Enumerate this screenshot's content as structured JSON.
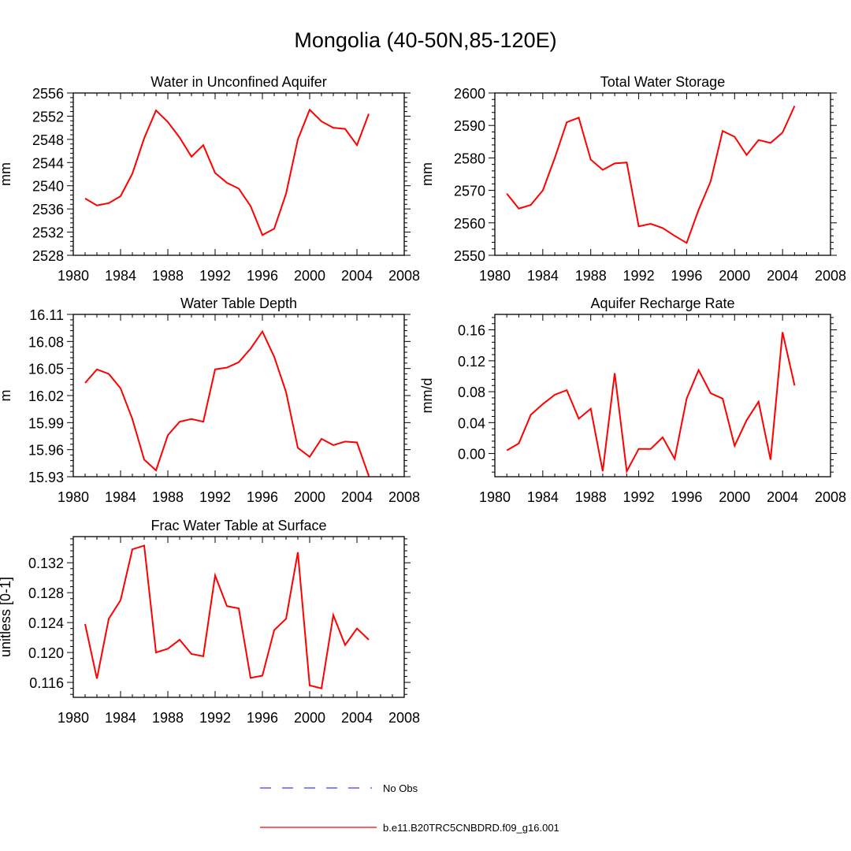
{
  "title": "Mongolia (40-50N,85-120E)",
  "colors": {
    "series": "#ff0000",
    "obs": "#3a3aff",
    "axis": "#000000"
  },
  "legend": {
    "placement": "bottom-center",
    "entries": [
      {
        "label": "No Obs",
        "style": "dashed",
        "color": "#3a3aff"
      },
      {
        "label": "b.e11.B20TRC5CNBDRD.f09_g16.001",
        "style": "solid",
        "color": "#ff0000"
      }
    ]
  },
  "chart_data": [
    {
      "type": "line",
      "title": "Water in Unconfined Aquifer",
      "ylabel": "mm",
      "xlim": [
        1980,
        2008
      ],
      "xticks": [
        1980,
        1984,
        1988,
        1992,
        1996,
        2000,
        2004,
        2008
      ],
      "ylim": [
        2528,
        2556
      ],
      "yticks": [
        2528,
        2532,
        2536,
        2540,
        2544,
        2548,
        2552,
        2556
      ],
      "x": [
        1981,
        1982,
        1983,
        1984,
        1985,
        1986,
        1987,
        1988,
        1989,
        1990,
        1991,
        1992,
        1993,
        1994,
        1995,
        1996,
        1997,
        1998,
        1999,
        2000,
        2001,
        2002,
        2003,
        2004,
        2005
      ],
      "values": [
        2537.8,
        2536.6,
        2537.0,
        2538.2,
        2542.1,
        2548.2,
        2553.0,
        2551.0,
        2548.3,
        2545.0,
        2547.0,
        2542.2,
        2540.5,
        2539.5,
        2536.5,
        2531.5,
        2532.6,
        2538.6,
        2548.0,
        2553.1,
        2551.1,
        2550.0,
        2549.8,
        2547.0,
        2552.4
      ]
    },
    {
      "type": "line",
      "title": "Total Water Storage",
      "ylabel": "mm",
      "xlim": [
        1980,
        2008
      ],
      "xticks": [
        1980,
        1984,
        1988,
        1992,
        1996,
        2000,
        2004,
        2008
      ],
      "ylim": [
        2550,
        2600
      ],
      "yticks": [
        2550,
        2560,
        2570,
        2580,
        2590,
        2600
      ],
      "x": [
        1981,
        1982,
        1983,
        1984,
        1985,
        1986,
        1987,
        1988,
        1989,
        1990,
        1991,
        1992,
        1993,
        1994,
        1995,
        1996,
        1997,
        1998,
        1999,
        2000,
        2001,
        2002,
        2003,
        2004,
        2005
      ],
      "values": [
        2569.0,
        2564.4,
        2565.5,
        2570.0,
        2580.0,
        2591.0,
        2592.4,
        2579.5,
        2576.3,
        2578.3,
        2578.6,
        2558.9,
        2559.7,
        2558.4,
        2556.0,
        2553.8,
        2564.0,
        2572.8,
        2588.3,
        2586.5,
        2580.9,
        2585.5,
        2584.6,
        2587.8,
        2596.0
      ]
    },
    {
      "type": "line",
      "title": "Water Table Depth",
      "ylabel": "m",
      "xlim": [
        1980,
        2008
      ],
      "xticks": [
        1980,
        1984,
        1988,
        1992,
        1996,
        2000,
        2004,
        2008
      ],
      "ylim": [
        15.93,
        16.11
      ],
      "yticks": [
        "15.93",
        "15.96",
        "15.99",
        "16.02",
        "16.05",
        "16.08",
        "16.11"
      ],
      "x": [
        1981,
        1982,
        1983,
        1984,
        1985,
        1986,
        1987,
        1988,
        1989,
        1990,
        1991,
        1992,
        1993,
        1994,
        1995,
        1996,
        1997,
        1998,
        1999,
        2000,
        2001,
        2002,
        2003,
        2004,
        2005
      ],
      "values": [
        16.034,
        16.049,
        16.044,
        16.028,
        15.994,
        15.949,
        15.937,
        15.976,
        15.991,
        15.994,
        15.991,
        16.049,
        16.051,
        16.057,
        16.072,
        16.091,
        16.063,
        16.024,
        15.962,
        15.952,
        15.972,
        15.965,
        15.969,
        15.968,
        15.931
      ]
    },
    {
      "type": "line",
      "title": "Aquifer Recharge Rate",
      "ylabel": "mm/d",
      "xlim": [
        1980,
        2008
      ],
      "xticks": [
        1980,
        1984,
        1988,
        1992,
        1996,
        2000,
        2004,
        2008
      ],
      "ylim": [
        -0.03,
        0.18
      ],
      "yticks": [
        "0.00",
        "0.04",
        "0.08",
        "0.12",
        "0.16"
      ],
      "x": [
        1981,
        1982,
        1983,
        1984,
        1985,
        1986,
        1987,
        1988,
        1989,
        1990,
        1991,
        1992,
        1993,
        1994,
        1995,
        1996,
        1997,
        1998,
        1999,
        2000,
        2001,
        2002,
        2003,
        2004,
        2005
      ],
      "values": [
        0.004,
        0.013,
        0.05,
        0.064,
        0.076,
        0.082,
        0.045,
        0.058,
        -0.023,
        0.104,
        -0.023,
        0.006,
        0.006,
        0.021,
        -0.007,
        0.071,
        0.108,
        0.078,
        0.071,
        0.01,
        0.043,
        0.067,
        -0.008,
        0.157,
        0.088
      ]
    },
    {
      "type": "line",
      "title": "Frac Water Table at Surface",
      "ylabel": "unitless [0-1]",
      "xlim": [
        1980,
        2008
      ],
      "xticks": [
        1980,
        1984,
        1988,
        1992,
        1996,
        2000,
        2004,
        2008
      ],
      "ylim": [
        0.114,
        0.1355
      ],
      "yticks": [
        "0.116",
        "0.120",
        "0.124",
        "0.128",
        "0.132"
      ],
      "x": [
        1981,
        1982,
        1983,
        1984,
        1985,
        1986,
        1987,
        1988,
        1989,
        1990,
        1991,
        1992,
        1993,
        1994,
        1995,
        1996,
        1997,
        1998,
        1999,
        2000,
        2001,
        2002,
        2003,
        2004,
        2005
      ],
      "values": [
        0.1238,
        0.1165,
        0.1245,
        0.127,
        0.1338,
        0.1343,
        0.12,
        0.1205,
        0.1217,
        0.1198,
        0.1195,
        0.1303,
        0.1262,
        0.1259,
        0.1166,
        0.1169,
        0.123,
        0.1245,
        0.1334,
        0.1156,
        0.1152,
        0.125,
        0.121,
        0.1232,
        0.1217
      ]
    }
  ]
}
